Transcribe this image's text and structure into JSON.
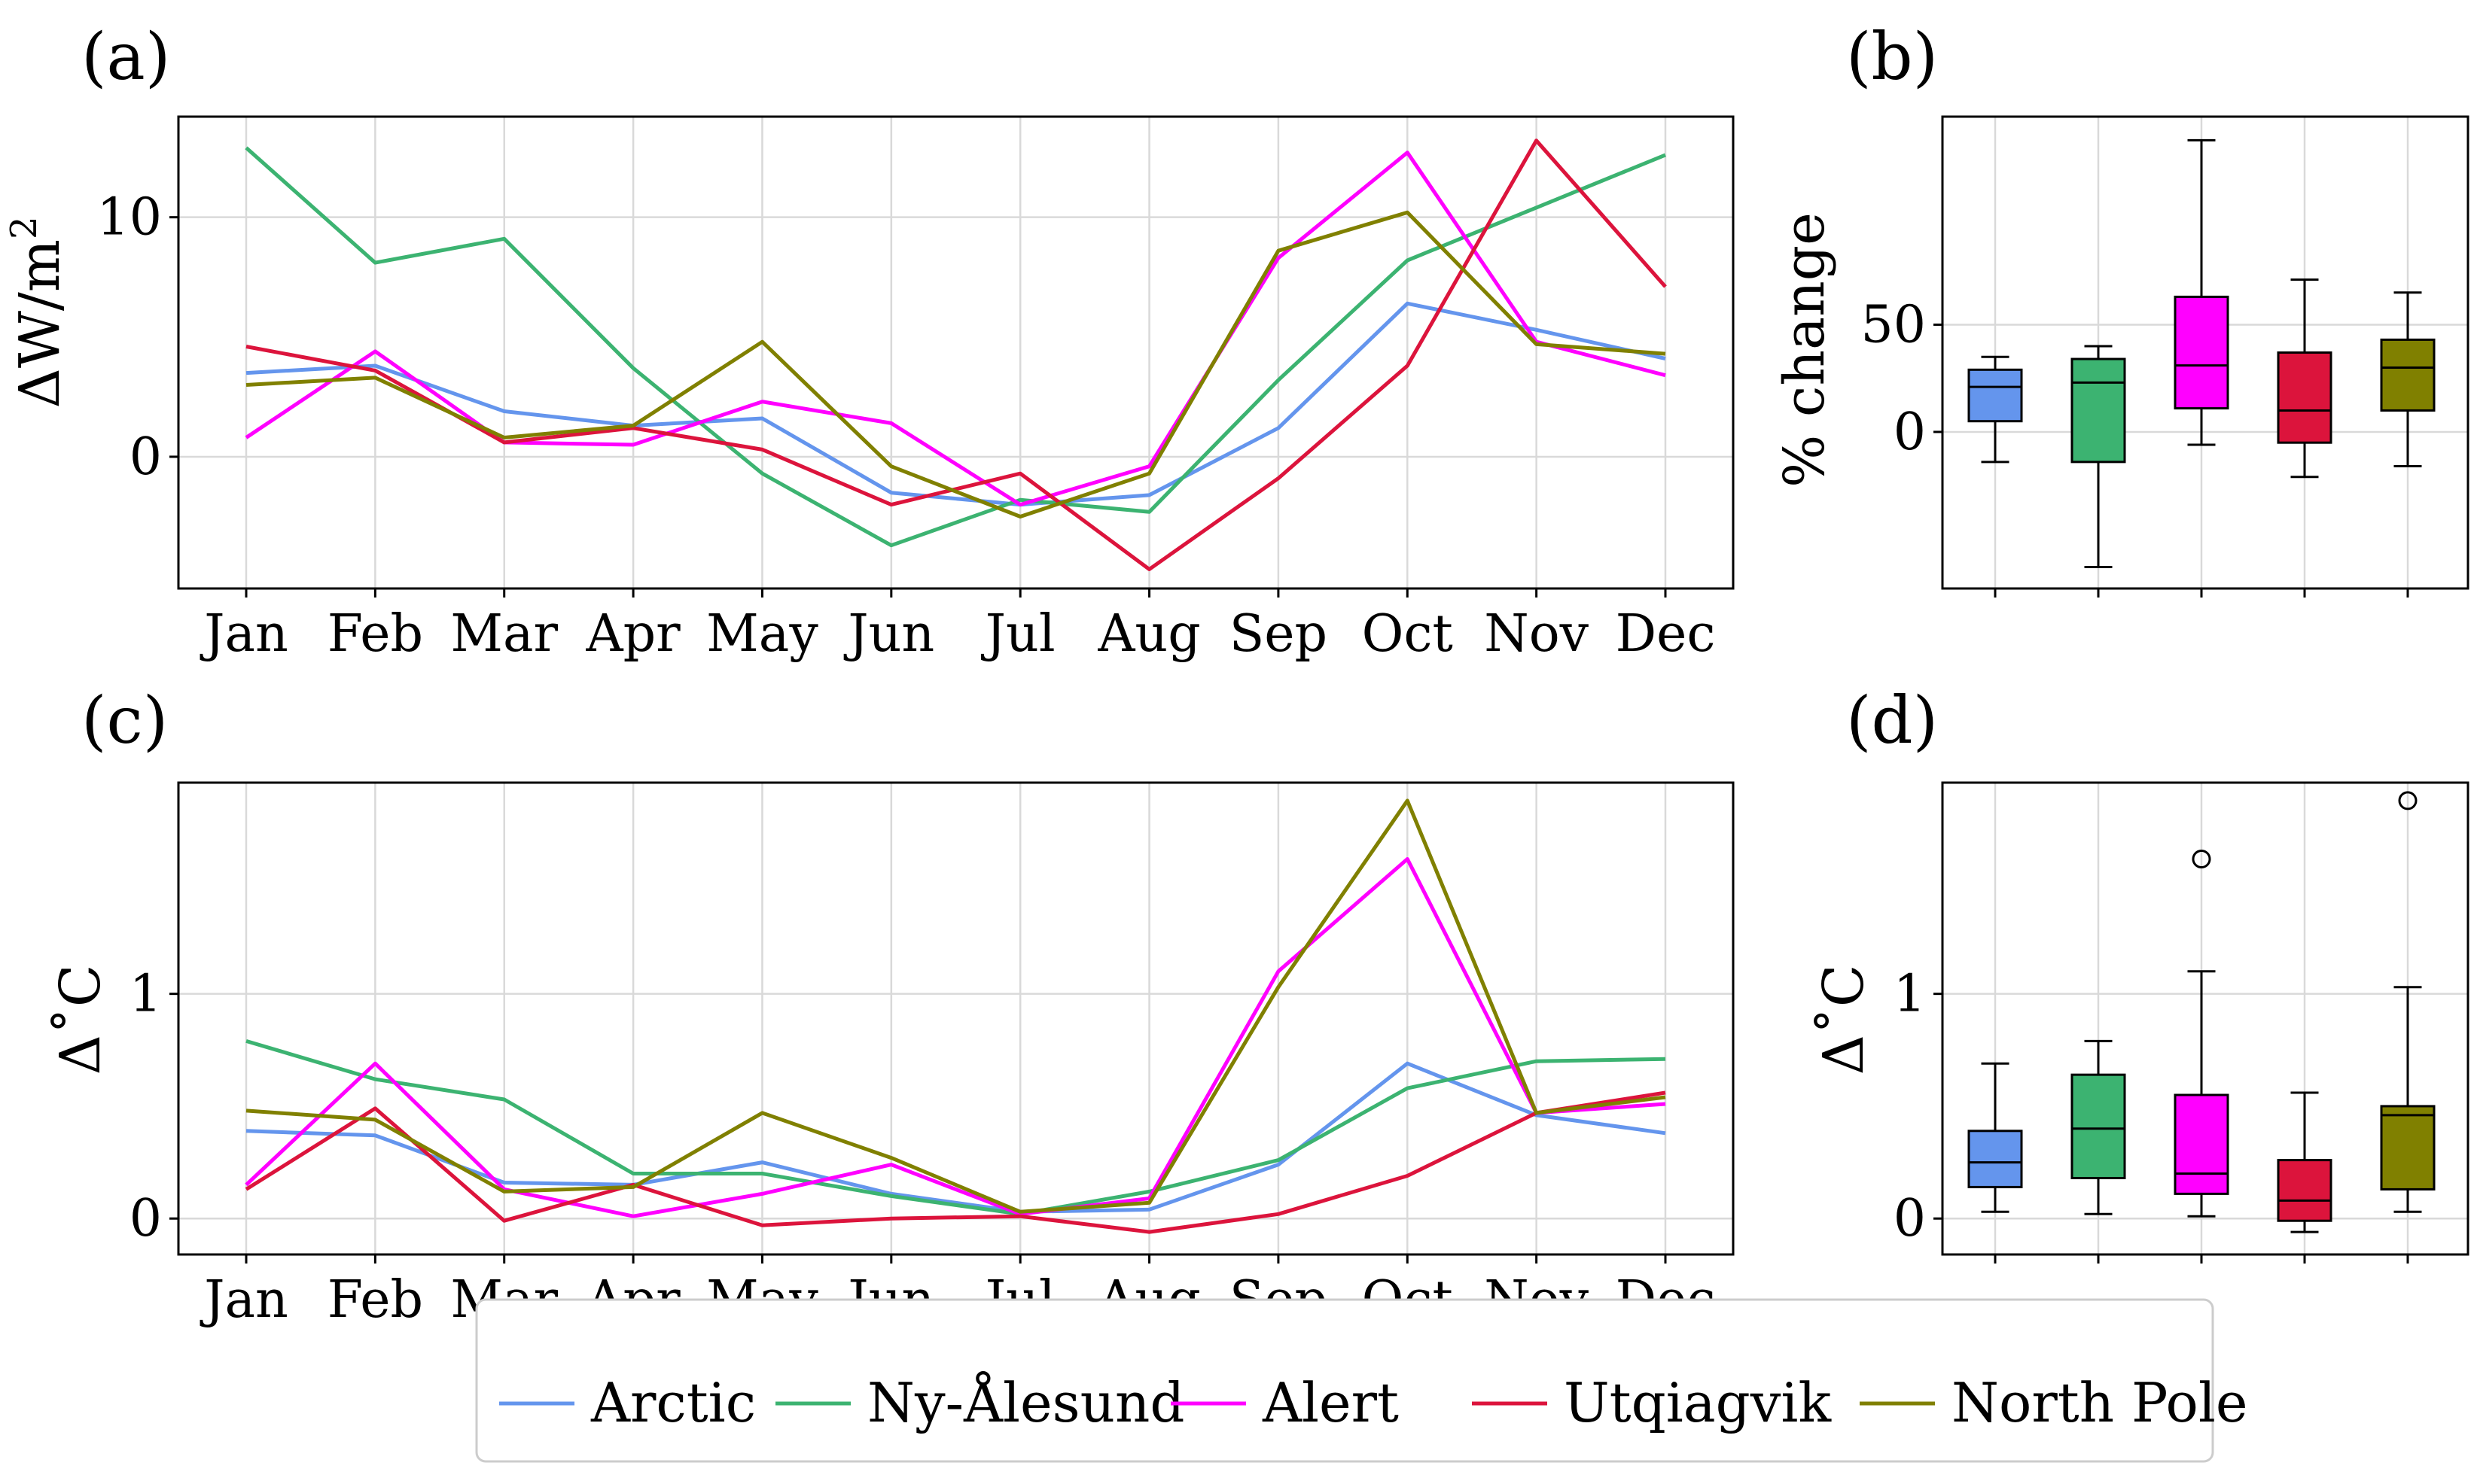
{
  "colors": {
    "Arctic": "#6495ED",
    "Ny-Ålesund": "#3CB371",
    "Alert": "#FF00FF",
    "Utqiagvik": "#DC143C",
    "North Pole": "#808000"
  },
  "legend": [
    "Arctic",
    "Ny-Ålesund",
    "Alert",
    "Utqiagvik",
    "North Pole"
  ],
  "chart_data": [
    {
      "panel": "(a)",
      "type": "line",
      "ylabel": "ΔW/m²",
      "ylabel_main": "ΔW/m",
      "ylabel_sup": "2",
      "categories": [
        "Jan",
        "Feb",
        "Mar",
        "Apr",
        "May",
        "Jun",
        "Jul",
        "Aug",
        "Sep",
        "Oct",
        "Nov",
        "Dec"
      ],
      "ylim": [
        -5.5,
        14.2
      ],
      "yticks": [
        0,
        10
      ],
      "grid": true,
      "series": [
        {
          "name": "Arctic",
          "values": [
            3.5,
            3.8,
            1.9,
            1.3,
            1.6,
            -1.5,
            -2.0,
            -1.6,
            1.2,
            6.4,
            5.3,
            4.1
          ]
        },
        {
          "name": "Ny-Ålesund",
          "values": [
            12.9,
            8.1,
            9.1,
            3.7,
            -0.7,
            -3.7,
            -1.8,
            -2.3,
            3.2,
            8.2,
            10.4,
            12.6
          ]
        },
        {
          "name": "Alert",
          "values": [
            0.8,
            4.4,
            0.6,
            0.5,
            2.3,
            1.4,
            -2.0,
            -0.4,
            8.3,
            12.7,
            4.8,
            3.4
          ]
        },
        {
          "name": "Utqiagvik",
          "values": [
            4.6,
            3.6,
            0.6,
            1.2,
            0.3,
            -2.0,
            -0.7,
            -4.7,
            -0.9,
            3.8,
            13.2,
            7.1
          ]
        },
        {
          "name": "North Pole",
          "values": [
            3.0,
            3.3,
            0.8,
            1.3,
            4.8,
            -0.4,
            -2.5,
            -0.7,
            8.6,
            10.2,
            4.7,
            4.3
          ]
        }
      ]
    },
    {
      "panel": "(b)",
      "type": "box",
      "ylabel": "% change",
      "ylim": [
        -73,
        147
      ],
      "yticks": [
        0,
        50
      ],
      "grid": true,
      "boxes": [
        {
          "name": "Arctic",
          "whisker_low": -14,
          "q1": 5,
          "median": 21,
          "q3": 29,
          "whisker_high": 35
        },
        {
          "name": "Ny-Ålesund",
          "whisker_low": -63,
          "q1": -14,
          "median": 23,
          "q3": 34,
          "whisker_high": 40
        },
        {
          "name": "Alert",
          "whisker_low": -6,
          "q1": 11,
          "median": 31,
          "q3": 63,
          "whisker_high": 136
        },
        {
          "name": "Utqiagvik",
          "whisker_low": -21,
          "q1": -5,
          "median": 10,
          "q3": 37,
          "whisker_high": 71
        },
        {
          "name": "North Pole",
          "whisker_low": -16,
          "q1": 10,
          "median": 30,
          "q3": 43,
          "whisker_high": 65
        }
      ]
    },
    {
      "panel": "(c)",
      "type": "line",
      "ylabel": "Δ˚C",
      "categories": [
        "Jan",
        "Feb",
        "Mar",
        "Apr",
        "May",
        "Jun",
        "Jul",
        "Aug",
        "Sep",
        "Oct",
        "Nov",
        "Dec"
      ],
      "ylim": [
        -0.16,
        1.94
      ],
      "yticks": [
        0,
        1
      ],
      "grid": true,
      "series": [
        {
          "name": "Arctic",
          "values": [
            0.39,
            0.37,
            0.16,
            0.15,
            0.25,
            0.11,
            0.03,
            0.04,
            0.24,
            0.69,
            0.46,
            0.38
          ]
        },
        {
          "name": "Ny-Ålesund",
          "values": [
            0.79,
            0.62,
            0.53,
            0.2,
            0.2,
            0.1,
            0.02,
            0.12,
            0.26,
            0.58,
            0.7,
            0.71
          ]
        },
        {
          "name": "Alert",
          "values": [
            0.15,
            0.69,
            0.13,
            0.01,
            0.11,
            0.24,
            0.02,
            0.09,
            1.1,
            1.6,
            0.47,
            0.51
          ]
        },
        {
          "name": "Utqiagvik",
          "values": [
            0.13,
            0.49,
            -0.01,
            0.15,
            -0.03,
            0.0,
            0.01,
            -0.06,
            0.02,
            0.19,
            0.47,
            0.56
          ]
        },
        {
          "name": "North Pole",
          "values": [
            0.48,
            0.44,
            0.12,
            0.14,
            0.47,
            0.27,
            0.03,
            0.07,
            1.03,
            1.86,
            0.47,
            0.54
          ]
        }
      ]
    },
    {
      "panel": "(d)",
      "type": "box",
      "ylabel": "Δ˚C",
      "ylim": [
        -0.16,
        1.94
      ],
      "yticks": [
        0,
        1
      ],
      "grid": true,
      "boxes": [
        {
          "name": "Arctic",
          "whisker_low": 0.03,
          "q1": 0.14,
          "median": 0.25,
          "q3": 0.39,
          "whisker_high": 0.69,
          "outliers": []
        },
        {
          "name": "Ny-Ålesund",
          "whisker_low": 0.02,
          "q1": 0.18,
          "median": 0.4,
          "q3": 0.64,
          "whisker_high": 0.79,
          "outliers": []
        },
        {
          "name": "Alert",
          "whisker_low": 0.01,
          "q1": 0.11,
          "median": 0.2,
          "q3": 0.55,
          "whisker_high": 1.1,
          "outliers": [
            1.6
          ]
        },
        {
          "name": "Utqiagvik",
          "whisker_low": -0.06,
          "q1": -0.01,
          "median": 0.08,
          "q3": 0.26,
          "whisker_high": 0.56,
          "outliers": []
        },
        {
          "name": "North Pole",
          "whisker_low": 0.03,
          "q1": 0.13,
          "median": 0.46,
          "q3": 0.5,
          "whisker_high": 1.03,
          "outliers": [
            1.86
          ]
        }
      ]
    }
  ]
}
